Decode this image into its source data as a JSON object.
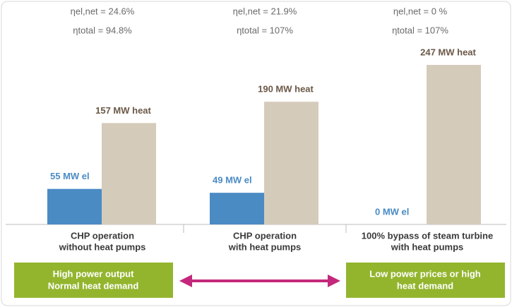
{
  "chart_data": {
    "type": "bar",
    "categories": [
      [
        "CHP operation",
        "without heat pumps"
      ],
      [
        "CHP operation",
        "with heat pumps"
      ],
      [
        "100% bypass of steam turbine",
        "with heat pumps"
      ]
    ],
    "series": [
      {
        "color": "#4a8bc4",
        "label_color": "#4a8bc4",
        "values": [
          55,
          49,
          0
        ],
        "value_labels": [
          "55 MW el",
          "49 MW el",
          "0 MW el"
        ]
      },
      {
        "color": "#d5cbbb",
        "label_color": "#6b5847",
        "values": [
          157,
          190,
          247
        ],
        "value_labels": [
          "157 MW heat",
          "190 MW heat",
          "247 MW heat"
        ]
      }
    ],
    "annotations": [
      [
        "ηel,net = 24.6%",
        "ηtotal = 94.8%"
      ],
      [
        "ηel,net = 21.9%",
        "ηtotal = 107%"
      ],
      [
        "ηel,net = 0 %",
        "ηtotal = 107%"
      ]
    ],
    "boxes": [
      [
        "High power output",
        "Normal heat demand"
      ],
      [
        "Low power prices or high",
        "heat demand"
      ]
    ],
    "box_color": "#93b52e",
    "arrow_color": "#c4287c"
  }
}
